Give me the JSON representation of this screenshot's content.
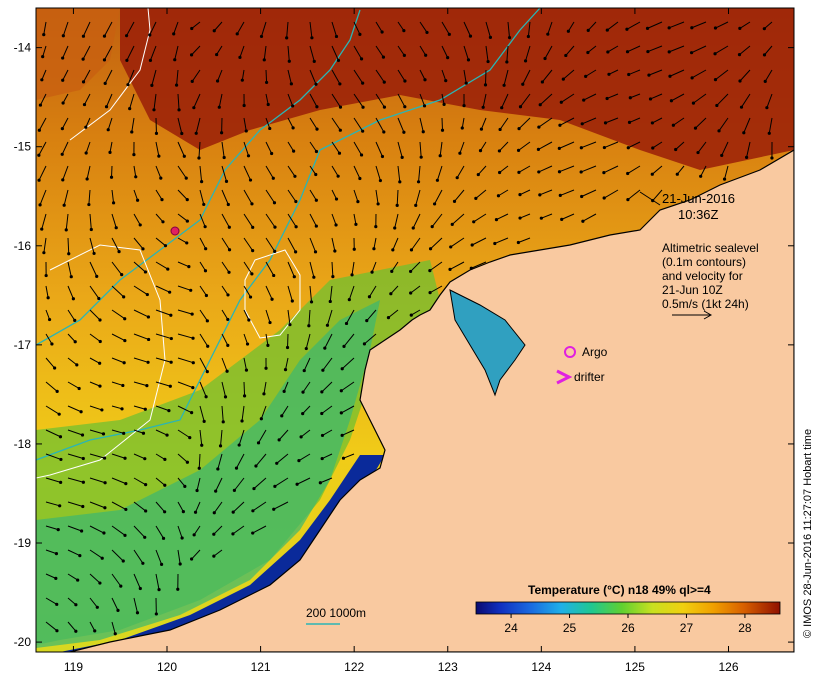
{
  "map": {
    "lat_ticks": [
      "-14",
      "-15",
      "-16",
      "-17",
      "-18",
      "-19",
      "-20"
    ],
    "lon_ticks": [
      "119",
      "120",
      "121",
      "122",
      "123",
      "124",
      "125",
      "126"
    ],
    "lat_range": [
      -20.1,
      -13.6
    ],
    "lon_range": [
      118.6,
      126.7
    ],
    "colors": {
      "land": "#f9c9a0",
      "coast": "#000000",
      "isobath_200": "#2ab5b5",
      "sealevel_contour": "#ffffff",
      "argo": "#e020e0",
      "drifter": "#e020e0",
      "float_dot": "#e02060"
    }
  },
  "annotations": {
    "date": "21-Jun-2016",
    "time": "10:36Z",
    "altimetry_lines": [
      "Altimetric sealevel",
      "(0.1m contours)",
      "and velocity for",
      "21-Jun 10Z",
      "0.5m/s (1kt 24h)"
    ],
    "argo_label": "Argo",
    "drifter_label": "drifter",
    "isobath_label": "200  1000m"
  },
  "colorbar": {
    "title": "Temperature (°C) n18 49% ql>=4",
    "ticks": [
      "24",
      "25",
      "26",
      "27",
      "28"
    ],
    "range": [
      23.4,
      28.6
    ]
  },
  "credit": "© IMOS 28-Jun-2016 11:27:07 Hobart time"
}
